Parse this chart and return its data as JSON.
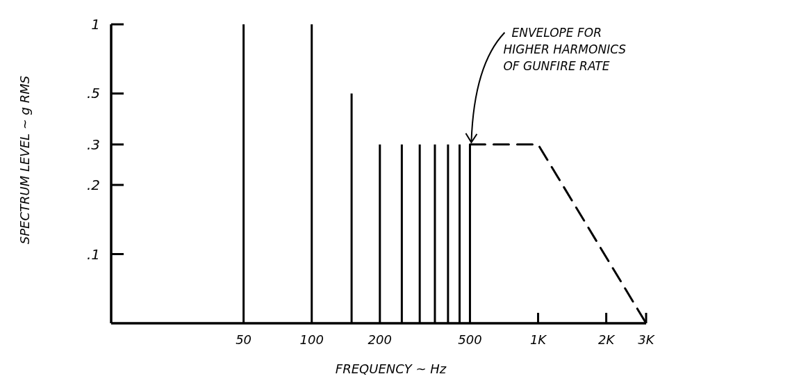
{
  "chart_data": {
    "type": "bar",
    "xlabel": "FREQUENCY ~ Hz",
    "ylabel": "SPECTRUM LEVEL ~ g RMS",
    "log": "xy",
    "xlim": [
      13,
      3000
    ],
    "ylim": [
      0.05,
      1
    ],
    "xticks": [
      50,
      100,
      200,
      500,
      {
        "value": 1000,
        "label": "1K"
      },
      {
        "value": 2000,
        "label": "2K"
      },
      {
        "value": 3000,
        "label": "3K"
      }
    ],
    "yticks": [
      {
        "value": 0.1,
        "label": ".1"
      },
      {
        "value": 0.2,
        "label": ".2"
      },
      {
        "value": 0.3,
        "label": ".3"
      },
      {
        "value": 0.5,
        "label": ".5"
      },
      1
    ],
    "series": [
      {
        "color": "#000000",
        "x": [
          50,
          100,
          150,
          200,
          250,
          300,
          350,
          400,
          450,
          500
        ],
        "values": [
          1,
          1,
          0.5,
          0.3,
          0.3,
          0.3,
          0.3,
          0.3,
          0.3,
          0.3
        ]
      },
      {
        "type": "line",
        "color": "#000000",
        "line_style": "dashed",
        "x": [
          500,
          1000,
          3000
        ],
        "values": [
          0.3,
          0.3,
          0.05
        ]
      }
    ],
    "annotations": [
      {
        "text": "ENVELOPE FOR\nHIGHER HARMONICS\nOF GUNFIRE RATE",
        "x": 500,
        "y": 0.3
      }
    ]
  }
}
